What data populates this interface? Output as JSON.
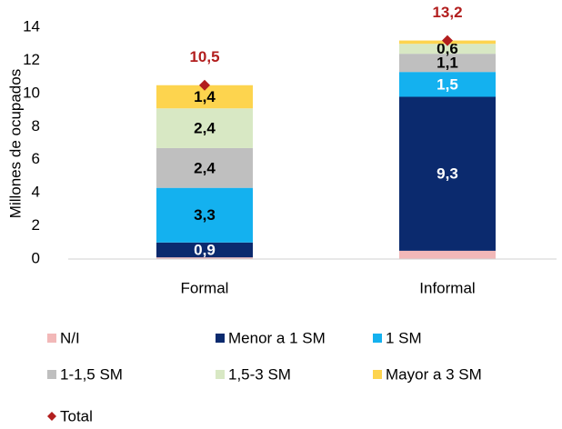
{
  "chart_data": {
    "type": "bar",
    "stacked": true,
    "y_label": "Millones de ocupados",
    "categories": [
      "Formal",
      "Informal"
    ],
    "ylim": [
      0,
      14
    ],
    "yticks": [
      0,
      2,
      4,
      6,
      8,
      10,
      12,
      14
    ],
    "series": [
      {
        "name": "N/I",
        "color": "#f2b8b8",
        "values": [
          0.1,
          0.5
        ]
      },
      {
        "name": "Menor a 1 SM",
        "color": "#0b2a6e",
        "values": [
          0.9,
          9.3
        ],
        "value_labels": [
          "0,9",
          "9,3"
        ]
      },
      {
        "name": "1 SM",
        "color": "#14b1ef",
        "values": [
          3.3,
          1.5
        ],
        "value_labels": [
          "3,3",
          "1,5"
        ]
      },
      {
        "name": "1-1,5 SM",
        "color": "#bfbfbf",
        "values": [
          2.4,
          1.1
        ],
        "value_labels": [
          "2,4",
          "1,1"
        ]
      },
      {
        "name": "1,5-3 SM",
        "color": "#d8e8c4",
        "values": [
          2.4,
          0.6
        ],
        "value_labels": [
          "2,4",
          "0,6"
        ]
      },
      {
        "name": "Mayor a 3 SM",
        "color": "#fdd44e",
        "values": [
          1.4,
          0.2
        ],
        "value_labels": [
          "1,4",
          null
        ]
      },
      {
        "name": "Total",
        "type": "scatter",
        "color": "#b21e1e",
        "values": [
          10.5,
          13.2
        ],
        "value_labels": [
          "10,5",
          "13,2"
        ]
      }
    ]
  }
}
